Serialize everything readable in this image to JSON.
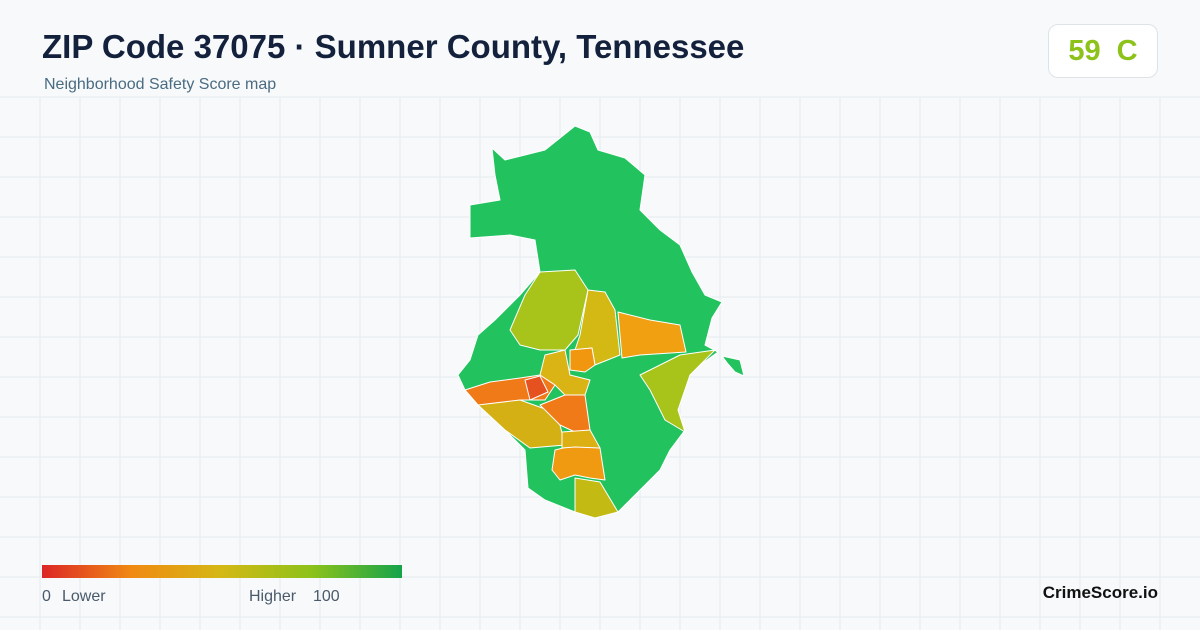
{
  "header": {
    "title": "ZIP Code 37075 · Sumner County, Tennessee",
    "subtitle": "Neighborhood Safety Score map"
  },
  "badge": {
    "score": 59,
    "grade": "C"
  },
  "legend": {
    "min": 0,
    "min_label": "Lower",
    "max_label": "Higher",
    "max": 100
  },
  "footer": {
    "brand": "CrimeScore.io"
  }
}
